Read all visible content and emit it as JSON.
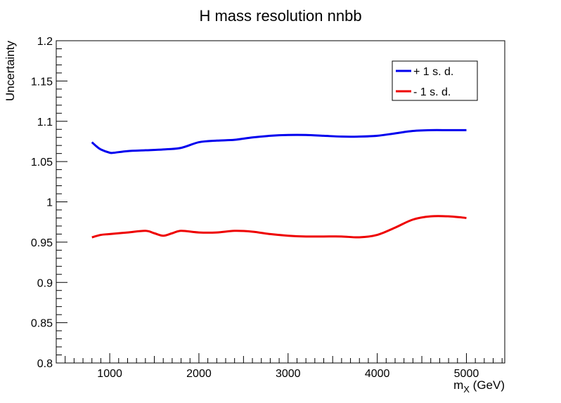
{
  "chart_data": {
    "type": "line",
    "title": "H mass resolution nnbb",
    "xlabel": "m",
    "xlabel_sub": "X",
    "xlabel_unit": " (GeV)",
    "ylabel": "Uncertainty",
    "xlim": [
      400,
      5430
    ],
    "ylim": [
      0.8,
      1.2
    ],
    "x_ticks": [
      1000,
      2000,
      3000,
      4000,
      5000
    ],
    "x_tick_labels": [
      "1000",
      "2000",
      "3000",
      "4000",
      "5000"
    ],
    "y_ticks": [
      0.8,
      0.85,
      0.9,
      0.95,
      1.0,
      1.05,
      1.1,
      1.15,
      1.2
    ],
    "y_tick_labels": [
      "0.8",
      "0.85",
      "0.9",
      "0.95",
      "1",
      "1.05",
      "1.1",
      "1.15",
      "1.2"
    ],
    "grid": false,
    "legend_position": "top-right",
    "series": [
      {
        "name": "+ 1 s. d.",
        "color": "#0000ee",
        "x": [
          800,
          850,
          900,
          1000,
          1050,
          1200,
          1400,
          1600,
          1800,
          2000,
          2200,
          2400,
          2600,
          2800,
          3000,
          3200,
          3400,
          3600,
          3800,
          4000,
          4200,
          4400,
          4600,
          4800,
          5000
        ],
        "y": [
          1.074,
          1.069,
          1.065,
          1.061,
          1.061,
          1.063,
          1.064,
          1.065,
          1.067,
          1.074,
          1.076,
          1.077,
          1.08,
          1.082,
          1.083,
          1.083,
          1.082,
          1.081,
          1.081,
          1.082,
          1.085,
          1.088,
          1.089,
          1.089,
          1.089
        ]
      },
      {
        "name": "- 1 s. d.",
        "color": "#ee0000",
        "x": [
          800,
          900,
          1000,
          1200,
          1400,
          1500,
          1600,
          1700,
          1800,
          2000,
          2200,
          2400,
          2600,
          2800,
          3000,
          3200,
          3400,
          3600,
          3800,
          4000,
          4200,
          4400,
          4600,
          4800,
          5000
        ],
        "y": [
          0.956,
          0.959,
          0.96,
          0.962,
          0.964,
          0.961,
          0.958,
          0.961,
          0.964,
          0.962,
          0.962,
          0.964,
          0.963,
          0.96,
          0.958,
          0.957,
          0.957,
          0.957,
          0.956,
          0.959,
          0.968,
          0.978,
          0.982,
          0.982,
          0.98
        ]
      }
    ]
  }
}
